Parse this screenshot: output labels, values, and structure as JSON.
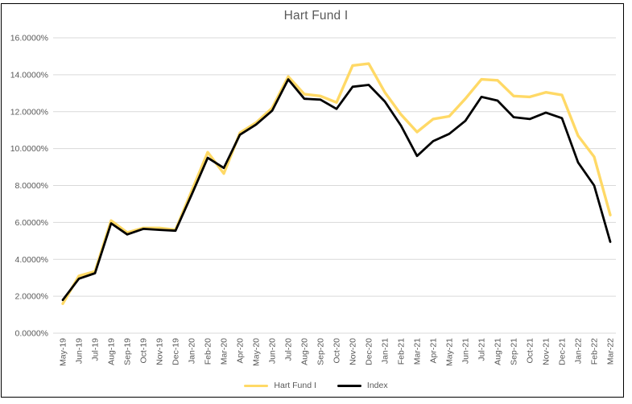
{
  "chart_data": {
    "type": "line",
    "title": "Hart Fund I",
    "categories": [
      "May-19",
      "Jun-19",
      "Jul-19",
      "Aug-19",
      "Sep-19",
      "Oct-19",
      "Nov-19",
      "Dec-19",
      "Jan-20",
      "Feb-20",
      "Mar-20",
      "Apr-20",
      "May-20",
      "Jun-20",
      "Jul-20",
      "Aug-20",
      "Sep-20",
      "Oct-20",
      "Nov-20",
      "Dec-20",
      "Jan-21",
      "Feb-21",
      "Mar-21",
      "Apr-21",
      "May-21",
      "Jun-21",
      "Jul-21",
      "Aug-21",
      "Sep-21",
      "Oct-21",
      "Nov-21",
      "Dec-21",
      "Jan-22",
      "Feb-22",
      "Mar-22"
    ],
    "series": [
      {
        "name": "Hart Fund I",
        "color": "#FFD966",
        "stroke_width": 3.4,
        "values": [
          1.6,
          3.1,
          3.35,
          6.1,
          5.45,
          5.7,
          5.7,
          5.6,
          7.7,
          9.8,
          8.65,
          10.85,
          11.4,
          12.2,
          13.9,
          12.95,
          12.85,
          12.5,
          14.5,
          14.6,
          13.05,
          11.85,
          10.9,
          11.6,
          11.75,
          12.7,
          13.75,
          13.7,
          12.85,
          12.8,
          13.05,
          12.9,
          10.7,
          9.55,
          6.4
        ]
      },
      {
        "name": "Index",
        "color": "#000000",
        "stroke_width": 2.8,
        "values": [
          1.8,
          2.95,
          3.25,
          5.95,
          5.35,
          5.65,
          5.6,
          5.55,
          7.5,
          9.5,
          8.95,
          10.75,
          11.3,
          12.05,
          13.75,
          12.7,
          12.65,
          12.15,
          13.35,
          13.45,
          12.55,
          11.25,
          9.6,
          10.4,
          10.8,
          11.5,
          12.8,
          12.6,
          11.7,
          11.6,
          11.95,
          11.65,
          9.25,
          8.0,
          4.95
        ]
      }
    ],
    "ylim": [
      0,
      16
    ],
    "y_tick_step": 2,
    "y_tick_labels": [
      "0.0000%",
      "2.0000%",
      "4.0000%",
      "6.0000%",
      "8.0000%",
      "10.0000%",
      "12.0000%",
      "14.0000%",
      "16.0000%"
    ],
    "grid": true,
    "x_label_rotation": -90,
    "legend_position": "bottom"
  },
  "colors": {
    "background": "#FFFFFF",
    "border": "#000000",
    "gridline": "#D9D9D9",
    "title_text": "#595959",
    "axis_text": "#595959",
    "legend_text": "#595959"
  }
}
